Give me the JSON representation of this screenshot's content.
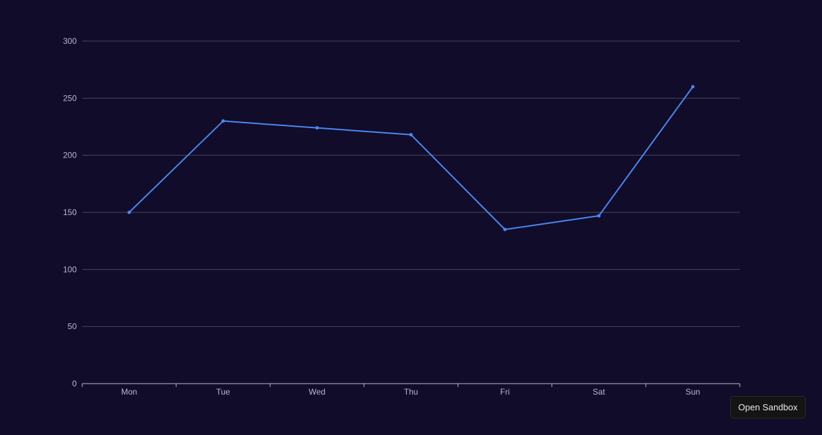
{
  "chart_data": {
    "type": "line",
    "categories": [
      "Mon",
      "Tue",
      "Wed",
      "Thu",
      "Fri",
      "Sat",
      "Sun"
    ],
    "series": [
      {
        "values": [
          150,
          230,
          224,
          218,
          135,
          147,
          260
        ],
        "color": "#4a87f2"
      }
    ],
    "ylim": [
      0,
      300
    ],
    "yticks": [
      0,
      50,
      100,
      150,
      200,
      250,
      300
    ],
    "grid": true,
    "title": "",
    "xlabel": "",
    "ylabel": "",
    "colors": {
      "background": "#100c2a",
      "grid": "#484753",
      "axis": "#b9b8ce",
      "label": "#b9b8ce"
    }
  },
  "toolbar": {
    "open_sandbox_label": "Open Sandbox"
  }
}
